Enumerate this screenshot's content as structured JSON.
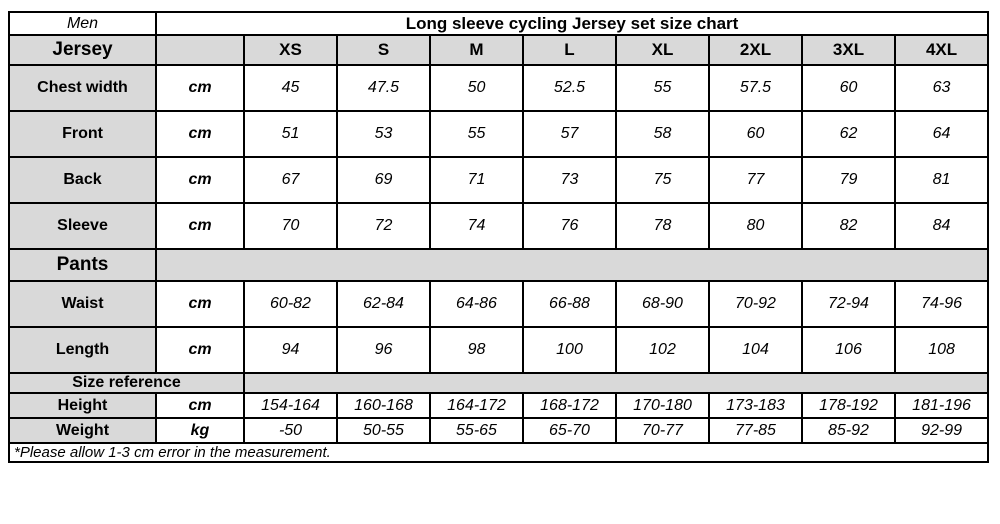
{
  "title_row": {
    "gender": "Men",
    "title": "Long sleeve cycling Jersey set size chart"
  },
  "size_headers": [
    "XS",
    "S",
    "M",
    "L",
    "XL",
    "2XL",
    "3XL",
    "4XL"
  ],
  "jersey_section": {
    "label": "Jersey",
    "rows": [
      {
        "label": "Chest width",
        "unit": "cm",
        "values": [
          "45",
          "47.5",
          "50",
          "52.5",
          "55",
          "57.5",
          "60",
          "63"
        ]
      },
      {
        "label": "Front",
        "unit": "cm",
        "values": [
          "51",
          "53",
          "55",
          "57",
          "58",
          "60",
          "62",
          "64"
        ]
      },
      {
        "label": "Back",
        "unit": "cm",
        "values": [
          "67",
          "69",
          "71",
          "73",
          "75",
          "77",
          "79",
          "81"
        ]
      },
      {
        "label": "Sleeve",
        "unit": "cm",
        "values": [
          "70",
          "72",
          "74",
          "76",
          "78",
          "80",
          "82",
          "84"
        ]
      }
    ]
  },
  "pants_section": {
    "label": "Pants",
    "rows": [
      {
        "label": "Waist",
        "unit": "cm",
        "values": [
          "60-82",
          "62-84",
          "64-86",
          "66-88",
          "68-90",
          "70-92",
          "72-94",
          "74-96"
        ]
      },
      {
        "label": "Length",
        "unit": "cm",
        "values": [
          "94",
          "96",
          "98",
          "100",
          "102",
          "104",
          "106",
          "108"
        ]
      }
    ]
  },
  "size_reference_section": {
    "label": "Size reference",
    "rows": [
      {
        "label": "Height",
        "unit": "cm",
        "values": [
          "154-164",
          "160-168",
          "164-172",
          "168-172",
          "170-180",
          "173-183",
          "178-192",
          "181-196"
        ]
      },
      {
        "label": "Weight",
        "unit": "kg",
        "values": [
          "-50",
          "50-55",
          "55-65",
          "65-70",
          "70-77",
          "77-85",
          "85-92",
          "92-99"
        ]
      }
    ]
  },
  "footnote": "*Please allow 1-3 cm error in the measurement.",
  "colors": {
    "header_gray": "#d9d9d9",
    "border": "#000000",
    "background": "#ffffff",
    "text": "#000000"
  }
}
